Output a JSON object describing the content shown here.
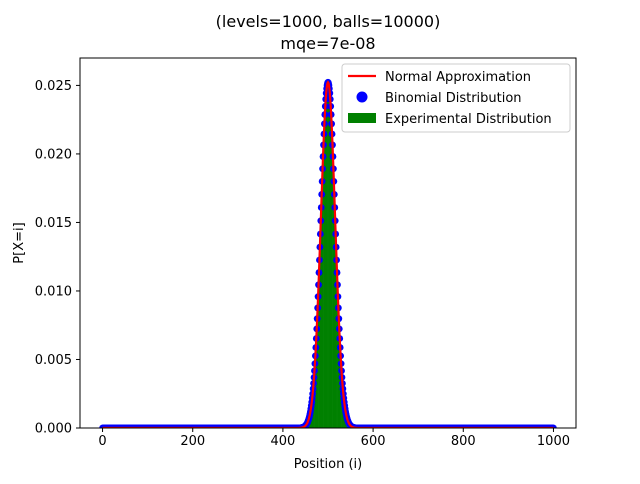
{
  "chart_data": {
    "type": "bar",
    "title_line1": "(levels=1000, balls=10000)",
    "title_line2": "mqe=7e-08",
    "xlabel": "Position (i)",
    "ylabel": "P[X=i]",
    "xlim": [
      -50,
      1050
    ],
    "ylim": [
      0,
      0.027
    ],
    "xticks": [
      0,
      200,
      400,
      600,
      800,
      1000
    ],
    "xtick_labels": [
      "0",
      "200",
      "400",
      "600",
      "800",
      "1000"
    ],
    "yticks": [
      0,
      0.005,
      0.01,
      0.015,
      0.02,
      0.025
    ],
    "ytick_labels": [
      "0.000",
      "0.005",
      "0.010",
      "0.015",
      "0.020",
      "0.025"
    ],
    "grid": false,
    "legend_position": "upper right",
    "distribution": {
      "levels": 1000,
      "n": 1000,
      "p": 0.5
    },
    "series": [
      {
        "name": "Normal Approximation",
        "kind": "line",
        "color": "#ff0000"
      },
      {
        "name": "Binomial Distribution",
        "kind": "scatter",
        "color": "#0000ff"
      },
      {
        "name": "Experimental Distribution",
        "kind": "bar",
        "color": "#008000"
      }
    ]
  }
}
